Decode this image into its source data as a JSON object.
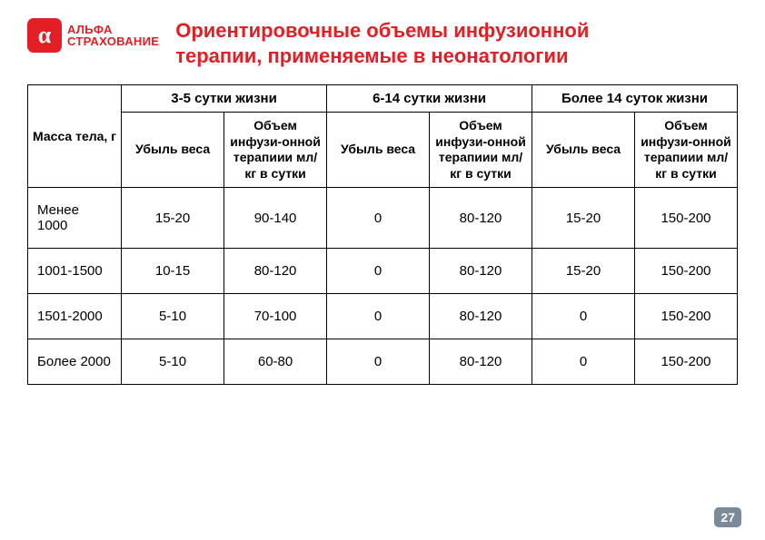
{
  "logo": {
    "glyph": "α",
    "line1": "АЛЬФА",
    "line2": "СТРАХОВАНИЕ"
  },
  "title_line1": "Ориентировочные объемы инфузионной",
  "title_line2": "терапии, применяемые в неонатологии",
  "table": {
    "corner_label": "Масса тела, г",
    "groups": [
      "3-5 сутки жизни",
      "6-14 сутки жизни",
      "Более 14 суток жизни"
    ],
    "sub_a": "Убыль веса",
    "sub_b": "Объем инфузи-онной терапиии мл/кг в сутки",
    "rows": [
      {
        "mass": "Менее 1000",
        "c": [
          "15-20",
          "90-140",
          "0",
          "80-120",
          "15-20",
          "150-200"
        ]
      },
      {
        "mass": "1001-1500",
        "c": [
          "10-15",
          "80-120",
          "0",
          "80-120",
          "15-20",
          "150-200"
        ]
      },
      {
        "mass": "1501-2000",
        "c": [
          "5-10",
          "70-100",
          "0",
          "80-120",
          "0",
          "150-200"
        ]
      },
      {
        "mass": "Более 2000",
        "c": [
          "5-10",
          "60-80",
          "0",
          "80-120",
          "0",
          "150-200"
        ]
      }
    ]
  },
  "page_number": "27",
  "colors": {
    "brand": "#e31e24",
    "border": "#000000",
    "badge_bg": "#7a8a99",
    "badge_fg": "#ffffff",
    "background": "#ffffff"
  }
}
